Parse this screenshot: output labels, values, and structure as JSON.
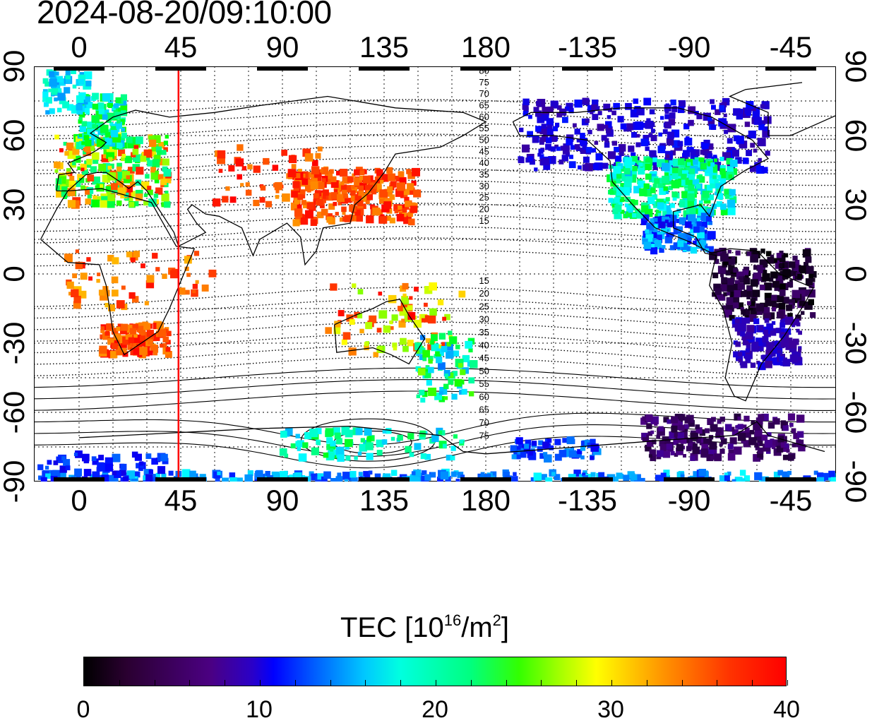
{
  "header": {
    "timestamp": "2024-08-20/09:10:00"
  },
  "axes": {
    "top_ticks": [
      "0",
      "45",
      "90",
      "135",
      "180",
      "-135",
      "-90",
      "-45"
    ],
    "bottom_ticks": [
      "0",
      "45",
      "90",
      "135",
      "180",
      "-135",
      "-90",
      "-45"
    ],
    "left_ticks": [
      "90",
      "60",
      "30",
      "0",
      "-30",
      "-60",
      "-90"
    ],
    "right_ticks": [
      "90",
      "60",
      "30",
      "0",
      "-30",
      "-60",
      "-90"
    ],
    "longitude_range": [
      -20,
      335
    ],
    "latitude_range": [
      -90,
      90
    ]
  },
  "map": {
    "marker_longitude": 44,
    "marker_color": "#ff0000",
    "contour_labels_north": [
      "80",
      "75",
      "70",
      "65",
      "60",
      "55",
      "50",
      "45",
      "40",
      "35",
      "30",
      "25",
      "20",
      "15"
    ],
    "contour_labels_south": [
      "15",
      "20",
      "25",
      "30",
      "35",
      "40",
      "45",
      "50",
      "55",
      "60",
      "65",
      "70",
      "75"
    ]
  },
  "colorbar": {
    "title_main": "TEC  [10",
    "title_exp1": "16",
    "title_mid": "/m",
    "title_exp2": "2",
    "title_end": "]",
    "labels": [
      "0",
      "10",
      "20",
      "30",
      "40"
    ],
    "range": [
      0,
      40
    ],
    "colormap": [
      "#000000",
      "#4b0082",
      "#0000ff",
      "#00ffff",
      "#00ff00",
      "#ffff00",
      "#ff0000"
    ]
  }
}
